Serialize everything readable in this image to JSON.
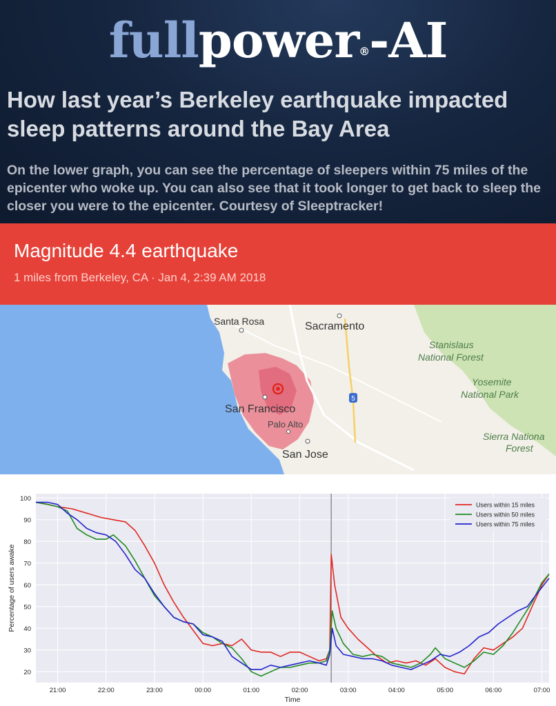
{
  "logo": {
    "part1": "full",
    "part2": "power",
    "reg": "®",
    "part3": "-AI"
  },
  "headline": "How last year’s Berkeley earthquake impacted sleep patterns around the Bay Area",
  "subtext": "On the lower graph, you can see the percentage of sleepers within 75 miles of the epicenter who woke up. You can also see that it took longer to get back to sleep the closer you were to the epicenter. Courtesy of Sleeptracker!",
  "banner": {
    "title": "Magnitude 4.4 earthquake",
    "subtitle": "1 miles from Berkeley, CA · Jan 4, 2:39 AM  2018"
  },
  "map": {
    "labels": {
      "santa_rosa": "Santa Rosa",
      "sacramento": "Sacramento",
      "stanislaus": "Stanislaus",
      "national_forest": "National Forest",
      "yosemite": "Yosemite",
      "national_park": "National Park",
      "san_francisco": "San Francisco",
      "palo_alto": "Palo Alto",
      "san_jose": "San Jose",
      "sierra": "Sierra Nationa",
      "forest": "Forest",
      "highway": "5"
    }
  },
  "chart_data": {
    "type": "line",
    "xlabel": "Time",
    "ylabel": "Percentage of users awake",
    "xticks": [
      "21:00",
      "22:00",
      "23:00",
      "00:00",
      "01:00",
      "02:00",
      "03:00",
      "04:00",
      "05:00",
      "06:00",
      "07:00"
    ],
    "yticks": [
      20,
      30,
      40,
      50,
      60,
      70,
      80,
      90,
      100
    ],
    "ylim": [
      15,
      102
    ],
    "xlim": [
      20.55,
      31.15
    ],
    "grid": true,
    "legend": "top-right",
    "event_line_x": 26.65,
    "series": [
      {
        "name": "Users within 15 miles",
        "color": "#e0271f",
        "points": [
          [
            20.55,
            98
          ],
          [
            20.8,
            97
          ],
          [
            21.0,
            96
          ],
          [
            21.3,
            95
          ],
          [
            21.6,
            93
          ],
          [
            21.9,
            91
          ],
          [
            22.15,
            90
          ],
          [
            22.4,
            89
          ],
          [
            22.6,
            85
          ],
          [
            22.8,
            78
          ],
          [
            23.0,
            70
          ],
          [
            23.2,
            60
          ],
          [
            23.4,
            52
          ],
          [
            23.6,
            45
          ],
          [
            23.8,
            39
          ],
          [
            24.0,
            33
          ],
          [
            24.2,
            32
          ],
          [
            24.4,
            33
          ],
          [
            24.6,
            32
          ],
          [
            24.8,
            35
          ],
          [
            25.0,
            30
          ],
          [
            25.2,
            29
          ],
          [
            25.4,
            29
          ],
          [
            25.6,
            27
          ],
          [
            25.8,
            29
          ],
          [
            26.0,
            29
          ],
          [
            26.2,
            27
          ],
          [
            26.4,
            25
          ],
          [
            26.55,
            26
          ],
          [
            26.62,
            30
          ],
          [
            26.65,
            74
          ],
          [
            26.72,
            60
          ],
          [
            26.85,
            45
          ],
          [
            27.0,
            40
          ],
          [
            27.2,
            35
          ],
          [
            27.4,
            31
          ],
          [
            27.6,
            27
          ],
          [
            27.8,
            24
          ],
          [
            28.0,
            25
          ],
          [
            28.2,
            24
          ],
          [
            28.4,
            25
          ],
          [
            28.6,
            23
          ],
          [
            28.8,
            26
          ],
          [
            29.0,
            22
          ],
          [
            29.2,
            20
          ],
          [
            29.4,
            19
          ],
          [
            29.6,
            26
          ],
          [
            29.8,
            31
          ],
          [
            30.0,
            30
          ],
          [
            30.2,
            33
          ],
          [
            30.4,
            36
          ],
          [
            30.6,
            40
          ],
          [
            30.8,
            50
          ],
          [
            31.0,
            60
          ],
          [
            31.15,
            65
          ]
        ]
      },
      {
        "name": "Users within 50 miles",
        "color": "#1f8a1f",
        "points": [
          [
            20.55,
            98
          ],
          [
            20.8,
            97
          ],
          [
            21.0,
            96
          ],
          [
            21.2,
            94
          ],
          [
            21.4,
            86
          ],
          [
            21.6,
            83
          ],
          [
            21.8,
            81
          ],
          [
            22.0,
            81
          ],
          [
            22.15,
            83
          ],
          [
            22.4,
            78
          ],
          [
            22.6,
            71
          ],
          [
            22.8,
            63
          ],
          [
            23.0,
            55
          ],
          [
            23.2,
            50
          ],
          [
            23.4,
            45
          ],
          [
            23.6,
            43
          ],
          [
            23.8,
            42
          ],
          [
            24.0,
            38
          ],
          [
            24.2,
            36
          ],
          [
            24.4,
            33
          ],
          [
            24.6,
            31
          ],
          [
            24.8,
            26
          ],
          [
            25.0,
            20
          ],
          [
            25.2,
            18
          ],
          [
            25.4,
            20
          ],
          [
            25.6,
            22
          ],
          [
            25.8,
            22
          ],
          [
            26.0,
            23
          ],
          [
            26.2,
            24
          ],
          [
            26.4,
            24
          ],
          [
            26.55,
            25
          ],
          [
            26.62,
            30
          ],
          [
            26.67,
            48
          ],
          [
            26.75,
            40
          ],
          [
            26.9,
            33
          ],
          [
            27.1,
            28
          ],
          [
            27.3,
            27
          ],
          [
            27.5,
            28
          ],
          [
            27.7,
            27
          ],
          [
            27.9,
            24
          ],
          [
            28.1,
            23
          ],
          [
            28.3,
            22
          ],
          [
            28.5,
            24
          ],
          [
            28.7,
            28
          ],
          [
            28.8,
            31
          ],
          [
            29.0,
            26
          ],
          [
            29.2,
            24
          ],
          [
            29.4,
            22
          ],
          [
            29.6,
            25
          ],
          [
            29.8,
            29
          ],
          [
            30.0,
            28
          ],
          [
            30.2,
            32
          ],
          [
            30.4,
            38
          ],
          [
            30.6,
            45
          ],
          [
            30.8,
            52
          ],
          [
            31.0,
            61
          ],
          [
            31.15,
            65
          ]
        ]
      },
      {
        "name": "Users within 75 miles",
        "color": "#2222cc",
        "points": [
          [
            20.55,
            98
          ],
          [
            20.8,
            98
          ],
          [
            21.0,
            97
          ],
          [
            21.2,
            93
          ],
          [
            21.4,
            90
          ],
          [
            21.6,
            86
          ],
          [
            21.8,
            84
          ],
          [
            22.0,
            83
          ],
          [
            22.2,
            80
          ],
          [
            22.4,
            74
          ],
          [
            22.6,
            67
          ],
          [
            22.8,
            63
          ],
          [
            23.0,
            56
          ],
          [
            23.2,
            50
          ],
          [
            23.4,
            45
          ],
          [
            23.6,
            43
          ],
          [
            23.8,
            42
          ],
          [
            24.0,
            37
          ],
          [
            24.2,
            36
          ],
          [
            24.4,
            34
          ],
          [
            24.6,
            27
          ],
          [
            24.8,
            24
          ],
          [
            25.0,
            21
          ],
          [
            25.2,
            21
          ],
          [
            25.4,
            23
          ],
          [
            25.6,
            22
          ],
          [
            25.8,
            23
          ],
          [
            26.0,
            24
          ],
          [
            26.2,
            25
          ],
          [
            26.4,
            24
          ],
          [
            26.55,
            23
          ],
          [
            26.62,
            28
          ],
          [
            26.67,
            40
          ],
          [
            26.75,
            32
          ],
          [
            26.9,
            28
          ],
          [
            27.1,
            27
          ],
          [
            27.3,
            26
          ],
          [
            27.5,
            26
          ],
          [
            27.7,
            25
          ],
          [
            27.9,
            23
          ],
          [
            28.1,
            22
          ],
          [
            28.3,
            21
          ],
          [
            28.5,
            23
          ],
          [
            28.7,
            25
          ],
          [
            28.9,
            28
          ],
          [
            29.1,
            27
          ],
          [
            29.3,
            29
          ],
          [
            29.5,
            32
          ],
          [
            29.7,
            36
          ],
          [
            29.9,
            38
          ],
          [
            30.1,
            42
          ],
          [
            30.3,
            45
          ],
          [
            30.5,
            48
          ],
          [
            30.7,
            50
          ],
          [
            30.9,
            56
          ],
          [
            31.15,
            63
          ]
        ]
      }
    ]
  }
}
